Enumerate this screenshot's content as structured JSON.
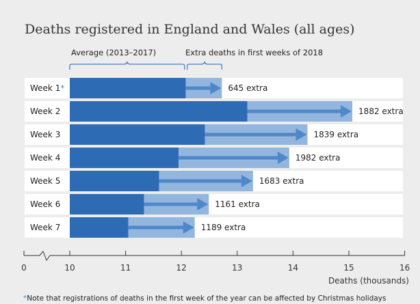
{
  "colors": {
    "background": "#ededed",
    "row": "#ffffff",
    "average": "#2e6bb5",
    "extra": "#93b6df",
    "arrow": "#4f87c9",
    "bracket": "#4a7fc1",
    "note_star": "#3a8fd6"
  },
  "chart_data": {
    "type": "bar",
    "title": "Deaths registered in England and Wales (all ages)",
    "legend": {
      "average": "Average (2013–2017)",
      "extra": "Extra deaths in first weeks of 2018"
    },
    "categories": [
      "Week 1",
      "Week 2",
      "Week 3",
      "Week 4",
      "Week 5",
      "Week 6",
      "Week 7"
    ],
    "category_marker": [
      "*",
      "",
      "",
      "",
      "",
      "",
      ""
    ],
    "series": [
      {
        "name": "Average (2013–2017)",
        "values": [
          12.08,
          13.18,
          12.42,
          11.95,
          11.6,
          11.33,
          11.05
        ]
      },
      {
        "name": "Extra deaths in first weeks of 2018",
        "values": [
          645,
          1882,
          1839,
          1982,
          1683,
          1161,
          1189
        ]
      }
    ],
    "extra_labels": [
      "645 extra",
      "1882 extra",
      "1839 extra",
      "1982 extra",
      "1683 extra",
      "1161 extra",
      "1189 extra"
    ],
    "xlabel": "Deaths (thousands)",
    "xlim": [
      10,
      16
    ],
    "xticks": [
      10,
      11,
      12,
      13,
      14,
      15,
      16
    ],
    "axis_origin_label": "0",
    "axis_break": true,
    "note_marker": "*",
    "note": "Note that registrations of deaths in the first week of the year can be affected by Christmas holidays"
  }
}
